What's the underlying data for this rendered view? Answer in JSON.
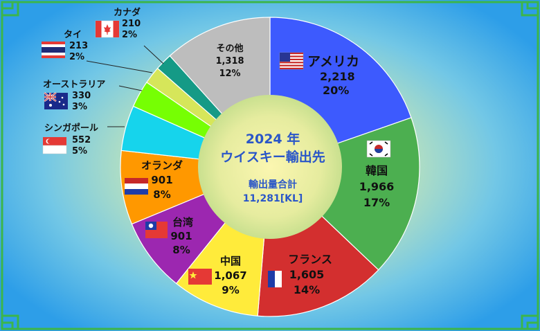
{
  "chart_data": {
    "type": "pie",
    "title": "2024 年",
    "subtitle": "ウイスキー輸出先",
    "center_label": "輸出量合計",
    "center_value": "11,281[KL]",
    "categories": [
      "アメリカ",
      "韓国",
      "フランス",
      "中国",
      "台湾",
      "オランダ",
      "シンガポール",
      "オーストラリア",
      "タイ",
      "カナダ",
      "その他"
    ],
    "values": [
      2218,
      1966,
      1605,
      1067,
      901,
      901,
      552,
      330,
      213,
      210,
      1318
    ],
    "value_labels": [
      "2,218",
      "1,966",
      "1,605",
      "1,067",
      "901",
      "901",
      "552",
      "330",
      "213",
      "210",
      "1,318"
    ],
    "percent_labels": [
      "20%",
      "17%",
      "14%",
      "9%",
      "8%",
      "8%",
      "5%",
      "3%",
      "2%",
      "2%",
      "12%"
    ],
    "colors": [
      "#3d5afe",
      "#4caf50",
      "#d32f2f",
      "#ffeb3b",
      "#9c27b0",
      "#ff9800",
      "#16d4ec",
      "#76ff03",
      "#d6e65a",
      "#159a86",
      "#bdbdbd"
    ],
    "flags": [
      "us-flag-icon",
      "kr-flag-icon",
      "fr-flag-icon",
      "cn-flag-icon",
      "tw-flag-icon",
      "nl-flag-icon",
      "sg-flag-icon",
      "au-flag-icon",
      "th-flag-icon",
      "ca-flag-icon",
      ""
    ],
    "legend": "none"
  },
  "frame_color": "#3cb54a"
}
